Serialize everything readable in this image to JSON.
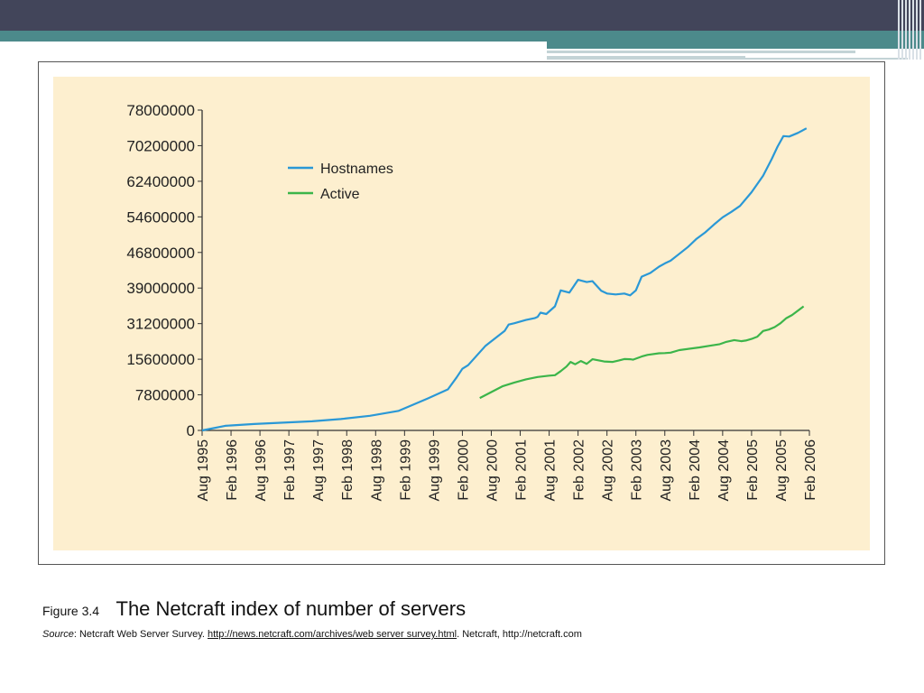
{
  "theme": {
    "header_color": "#42455a",
    "accent_teal": "#4c8a8b",
    "panel_bg": "#fdefcf"
  },
  "figure": {
    "label": "Figure 3.4",
    "title": "The Netcraft index of number of servers",
    "source_label": "Source",
    "source_text": ": Netcraft Web Server Survey. ",
    "source_link": "http://news.netcraft.com/archives/web server survey.html",
    "source_suffix": ". Netcraft, http://netcraft.com"
  },
  "chart_data": {
    "type": "line",
    "title": "",
    "xlabel": "",
    "ylabel": "",
    "grid": false,
    "legend_position": "top-left",
    "y_ticks": [
      "0",
      "7800000",
      "15600000",
      "31200000",
      "39000000",
      "46800000",
      "54600000",
      "62400000",
      "70200000",
      "78000000"
    ],
    "x_ticks": [
      "Aug 1995",
      "Feb 1996",
      "Aug 1996",
      "Feb 1997",
      "Aug 1997",
      "Feb 1998",
      "Aug 1998",
      "Feb 1999",
      "Aug 1999",
      "Feb 2000",
      "Aug 2000",
      "Feb 2001",
      "Aug 2001",
      "Feb 2002",
      "Aug 2002",
      "Feb 2003",
      "Aug 2003",
      "Feb 2004",
      "Aug 2004",
      "Feb 2005",
      "Aug 2005",
      "Feb 2006"
    ],
    "series": [
      {
        "name": "Hostnames",
        "color": "#2a98d6",
        "x": [
          1995.6,
          1996.0,
          1996.5,
          1997.0,
          1997.5,
          1998.0,
          1998.5,
          1999.0,
          1999.5,
          1999.85,
          2000.0,
          2000.1,
          2000.2,
          2000.5,
          2000.83,
          2000.9,
          2001.0,
          2001.2,
          2001.35,
          2001.4,
          2001.45,
          2001.55,
          2001.7,
          2001.8,
          2001.95,
          2002.1,
          2002.25,
          2002.35,
          2002.5,
          2002.6,
          2002.75,
          2002.9,
          2003.0,
          2003.1,
          2003.2,
          2003.35,
          2003.5,
          2003.6,
          2003.7,
          2003.85,
          2004.0,
          2004.15,
          2004.3,
          2004.45,
          2004.6,
          2004.75,
          2004.9,
          2005.1,
          2005.3,
          2005.45,
          2005.55,
          2005.65,
          2005.75,
          2005.9,
          2006.05
        ],
        "values": [
          0,
          1000000,
          1400000,
          1700000,
          2000000,
          2500000,
          3200000,
          4300000,
          7000000,
          9000000,
          11600000,
          13500000,
          14300000,
          21500000,
          28000000,
          30800000,
          31300000,
          32000000,
          32400000,
          32700000,
          33600000,
          33300000,
          35000000,
          38500000,
          38000000,
          40800000,
          40300000,
          40500000,
          38400000,
          37800000,
          37600000,
          37800000,
          37400000,
          38500000,
          41500000,
          42300000,
          43700000,
          44400000,
          45000000,
          46500000,
          48000000,
          49800000,
          51200000,
          52900000,
          54500000,
          55700000,
          57000000,
          60000000,
          63600000,
          67300000,
          70000000,
          72300000,
          72200000,
          73000000,
          74000000
        ]
      },
      {
        "name": "Active",
        "color": "#3cb54a",
        "x": [
          2000.4,
          2000.8,
          2001.0,
          2001.2,
          2001.4,
          2001.6,
          2001.7,
          2001.8,
          2001.9,
          2001.97,
          2002.05,
          2002.15,
          2002.25,
          2002.35,
          2002.55,
          2002.7,
          2002.8,
          2002.9,
          2003.0,
          2003.05,
          2003.2,
          2003.3,
          2003.5,
          2003.6,
          2003.7,
          2003.85,
          2004.2,
          2004.4,
          2004.55,
          2004.65,
          2004.8,
          2004.92,
          2005.0,
          2005.1,
          2005.2,
          2005.3,
          2005.4,
          2005.5,
          2005.6,
          2005.7,
          2005.8,
          2006.0
        ],
        "values": [
          7100000,
          9700000,
          10500000,
          11200000,
          11700000,
          12000000,
          12100000,
          13000000,
          14000000,
          15000000,
          14500000,
          15200000,
          14600000,
          15600000,
          15100000,
          15000000,
          15300000,
          15700000,
          15600000,
          15500000,
          16800000,
          17500000,
          18200000,
          18300000,
          18500000,
          19600000,
          20800000,
          21600000,
          22200000,
          23100000,
          24000000,
          23500000,
          23800000,
          24500000,
          25500000,
          28000000,
          28600000,
          29700000,
          31300000,
          32400000,
          33100000,
          35000000
        ]
      }
    ]
  }
}
